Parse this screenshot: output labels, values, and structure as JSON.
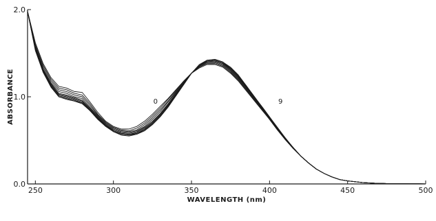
{
  "chart_data": {
    "type": "line",
    "title": "",
    "xlabel": "WAVELENGTH (nm)",
    "ylabel": "ABSORBANCE",
    "xlim": [
      245,
      500
    ],
    "ylim": [
      0,
      2.0
    ],
    "x_ticks": [
      250,
      300,
      350,
      400,
      450,
      500
    ],
    "y_ticks": [
      {
        "value": 0,
        "label": "0.0"
      },
      {
        "value": 1.0,
        "label": "1.0"
      },
      {
        "value": 2.0,
        "label": "2.0"
      }
    ],
    "grid": false,
    "legend": "none",
    "line_color": "#1a1a1a",
    "annotations": [
      {
        "text": "0",
        "x": 327,
        "y": 0.92
      },
      {
        "text": "9",
        "x": 407,
        "y": 0.92
      }
    ],
    "x": [
      245,
      250,
      255,
      260,
      265,
      270,
      275,
      280,
      285,
      290,
      295,
      300,
      305,
      310,
      315,
      320,
      325,
      330,
      335,
      340,
      345,
      350,
      355,
      360,
      365,
      370,
      375,
      380,
      385,
      390,
      395,
      400,
      405,
      410,
      415,
      420,
      425,
      430,
      435,
      440,
      445,
      450,
      455,
      460,
      465,
      470,
      475,
      480,
      485,
      490,
      495,
      500
    ],
    "series": [
      {
        "values": [
          1.98,
          1.62,
          1.38,
          1.22,
          1.12,
          1.1,
          1.06,
          1.05,
          0.94,
          0.82,
          0.72,
          0.66,
          0.63,
          0.63,
          0.66,
          0.72,
          0.8,
          0.89,
          0.98,
          1.08,
          1.18,
          1.27,
          1.33,
          1.37,
          1.37,
          1.34,
          1.27,
          1.18,
          1.07,
          0.96,
          0.85,
          0.74,
          0.62,
          0.51,
          0.41,
          0.32,
          0.24,
          0.17,
          0.12,
          0.08,
          0.05,
          0.035,
          0.025,
          0.015,
          0.01,
          0.006,
          0.004,
          0.003,
          0.002,
          0.001,
          0.001,
          0.0
        ]
      },
      {
        "values": [
          1.98,
          1.6,
          1.36,
          1.2,
          1.1,
          1.08,
          1.04,
          1.02,
          0.92,
          0.8,
          0.71,
          0.65,
          0.62,
          0.61,
          0.64,
          0.7,
          0.78,
          0.87,
          0.97,
          1.07,
          1.18,
          1.27,
          1.34,
          1.38,
          1.38,
          1.35,
          1.28,
          1.19,
          1.08,
          0.97,
          0.86,
          0.74,
          0.62,
          0.51,
          0.41,
          0.32,
          0.24,
          0.17,
          0.12,
          0.08,
          0.05,
          0.035,
          0.025,
          0.015,
          0.01,
          0.006,
          0.004,
          0.003,
          0.002,
          0.001,
          0.001,
          0.0
        ]
      },
      {
        "values": [
          1.98,
          1.58,
          1.34,
          1.18,
          1.08,
          1.06,
          1.02,
          1.0,
          0.9,
          0.79,
          0.7,
          0.64,
          0.61,
          0.6,
          0.62,
          0.68,
          0.76,
          0.85,
          0.95,
          1.06,
          1.17,
          1.27,
          1.34,
          1.39,
          1.39,
          1.36,
          1.29,
          1.2,
          1.09,
          0.97,
          0.86,
          0.75,
          0.63,
          0.51,
          0.41,
          0.32,
          0.24,
          0.17,
          0.12,
          0.08,
          0.05,
          0.035,
          0.025,
          0.015,
          0.01,
          0.006,
          0.004,
          0.003,
          0.002,
          0.001,
          0.001,
          0.0
        ]
      },
      {
        "values": [
          1.98,
          1.57,
          1.32,
          1.16,
          1.06,
          1.04,
          1.0,
          0.98,
          0.88,
          0.78,
          0.69,
          0.63,
          0.6,
          0.59,
          0.61,
          0.66,
          0.74,
          0.83,
          0.94,
          1.05,
          1.16,
          1.27,
          1.35,
          1.4,
          1.4,
          1.37,
          1.3,
          1.21,
          1.1,
          0.98,
          0.87,
          0.75,
          0.63,
          0.52,
          0.41,
          0.32,
          0.24,
          0.17,
          0.12,
          0.08,
          0.05,
          0.035,
          0.025,
          0.015,
          0.01,
          0.006,
          0.004,
          0.003,
          0.002,
          0.001,
          0.001,
          0.0
        ]
      },
      {
        "values": [
          1.98,
          1.56,
          1.31,
          1.15,
          1.04,
          1.02,
          0.99,
          0.96,
          0.87,
          0.77,
          0.68,
          0.62,
          0.59,
          0.58,
          0.6,
          0.65,
          0.72,
          0.81,
          0.92,
          1.04,
          1.16,
          1.27,
          1.35,
          1.4,
          1.41,
          1.38,
          1.31,
          1.22,
          1.11,
          0.99,
          0.87,
          0.75,
          0.63,
          0.52,
          0.41,
          0.32,
          0.24,
          0.17,
          0.12,
          0.08,
          0.05,
          0.035,
          0.025,
          0.015,
          0.01,
          0.006,
          0.004,
          0.003,
          0.002,
          0.001,
          0.001,
          0.0
        ]
      },
      {
        "values": [
          1.98,
          1.55,
          1.3,
          1.14,
          1.03,
          1.01,
          0.98,
          0.95,
          0.86,
          0.76,
          0.68,
          0.61,
          0.58,
          0.57,
          0.59,
          0.64,
          0.71,
          0.8,
          0.91,
          1.03,
          1.15,
          1.27,
          1.35,
          1.41,
          1.41,
          1.38,
          1.32,
          1.23,
          1.11,
          0.99,
          0.88,
          0.76,
          0.64,
          0.52,
          0.42,
          0.32,
          0.24,
          0.17,
          0.12,
          0.08,
          0.05,
          0.035,
          0.025,
          0.015,
          0.01,
          0.006,
          0.004,
          0.003,
          0.002,
          0.001,
          0.001,
          0.0
        ]
      },
      {
        "values": [
          1.98,
          1.55,
          1.29,
          1.13,
          1.02,
          1.0,
          0.97,
          0.94,
          0.85,
          0.76,
          0.67,
          0.61,
          0.58,
          0.57,
          0.58,
          0.63,
          0.7,
          0.79,
          0.9,
          1.02,
          1.15,
          1.27,
          1.36,
          1.41,
          1.42,
          1.39,
          1.32,
          1.23,
          1.12,
          1.0,
          0.88,
          0.76,
          0.64,
          0.52,
          0.42,
          0.32,
          0.24,
          0.17,
          0.12,
          0.08,
          0.05,
          0.035,
          0.025,
          0.015,
          0.01,
          0.006,
          0.004,
          0.003,
          0.002,
          0.001,
          0.001,
          0.0
        ]
      },
      {
        "values": [
          1.98,
          1.54,
          1.29,
          1.12,
          1.01,
          0.99,
          0.96,
          0.93,
          0.85,
          0.75,
          0.67,
          0.6,
          0.57,
          0.56,
          0.58,
          0.62,
          0.69,
          0.78,
          0.89,
          1.02,
          1.14,
          1.27,
          1.36,
          1.41,
          1.42,
          1.39,
          1.33,
          1.24,
          1.12,
          1.0,
          0.88,
          0.76,
          0.64,
          0.52,
          0.42,
          0.32,
          0.24,
          0.17,
          0.12,
          0.08,
          0.05,
          0.035,
          0.025,
          0.015,
          0.01,
          0.006,
          0.004,
          0.003,
          0.002,
          0.001,
          0.001,
          0.0
        ]
      },
      {
        "values": [
          1.98,
          1.54,
          1.28,
          1.12,
          1.0,
          0.98,
          0.95,
          0.93,
          0.84,
          0.75,
          0.66,
          0.6,
          0.57,
          0.56,
          0.57,
          0.62,
          0.69,
          0.78,
          0.89,
          1.01,
          1.14,
          1.27,
          1.36,
          1.42,
          1.43,
          1.4,
          1.33,
          1.24,
          1.13,
          1.0,
          0.89,
          0.77,
          0.64,
          0.53,
          0.42,
          0.32,
          0.24,
          0.17,
          0.12,
          0.08,
          0.05,
          0.035,
          0.025,
          0.015,
          0.01,
          0.006,
          0.004,
          0.003,
          0.002,
          0.001,
          0.001,
          0.0
        ]
      },
      {
        "values": [
          1.98,
          1.53,
          1.28,
          1.11,
          1.0,
          0.97,
          0.95,
          0.92,
          0.84,
          0.74,
          0.66,
          0.6,
          0.56,
          0.55,
          0.57,
          0.61,
          0.68,
          0.77,
          0.88,
          1.01,
          1.14,
          1.27,
          1.37,
          1.42,
          1.43,
          1.4,
          1.34,
          1.25,
          1.13,
          1.01,
          0.89,
          0.77,
          0.65,
          0.53,
          0.42,
          0.32,
          0.24,
          0.17,
          0.12,
          0.08,
          0.05,
          0.035,
          0.025,
          0.015,
          0.01,
          0.006,
          0.004,
          0.003,
          0.002,
          0.001,
          0.001,
          0.0
        ]
      }
    ]
  }
}
